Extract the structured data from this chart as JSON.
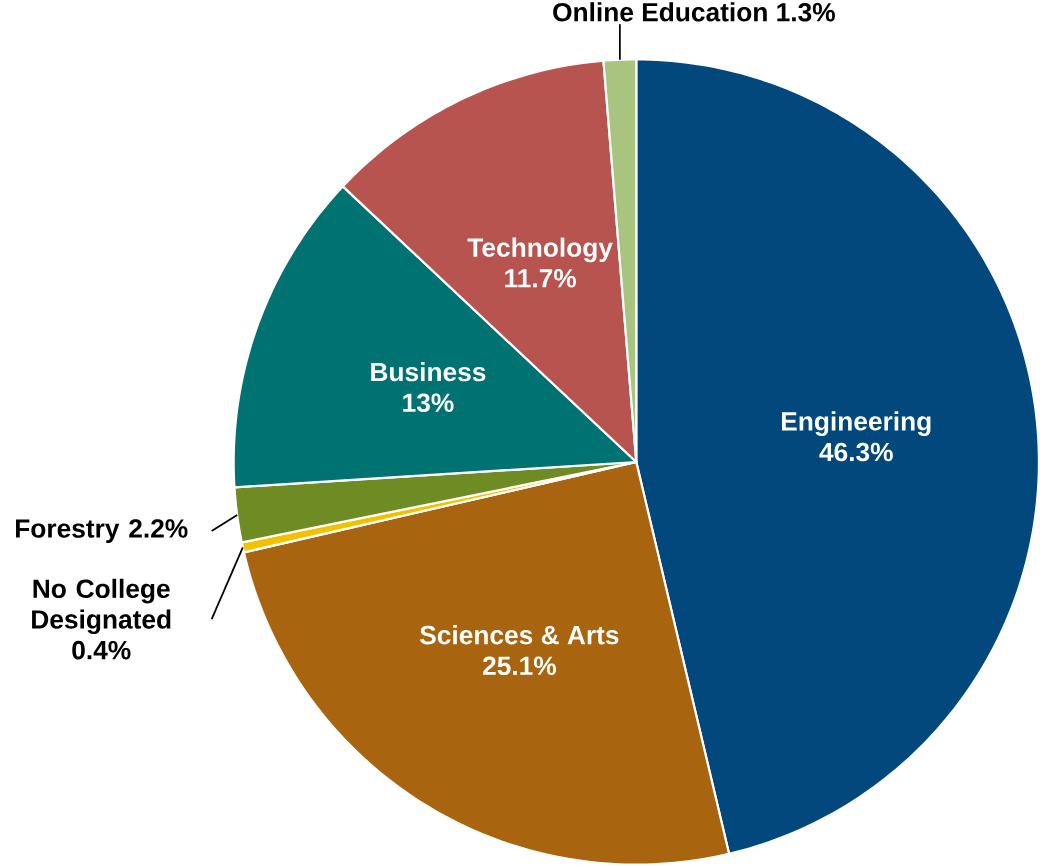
{
  "chart_data": {
    "type": "pie",
    "categories": [
      "Engineering",
      "Sciences & Arts",
      "No College Designated",
      "Forestry",
      "Business",
      "Technology",
      "Online Education"
    ],
    "values": [
      46.3,
      25.1,
      0.4,
      2.2,
      13,
      11.7,
      1.3
    ],
    "value_labels": [
      "46.3%",
      "25.1%",
      "0.4%",
      "2.2%",
      "13%",
      "11.7%",
      "1.3%"
    ],
    "colors": [
      "#03487c",
      "#a8640e",
      "#f2c200",
      "#6e8b24",
      "#007272",
      "#b85450",
      "#a9c47f"
    ]
  }
}
